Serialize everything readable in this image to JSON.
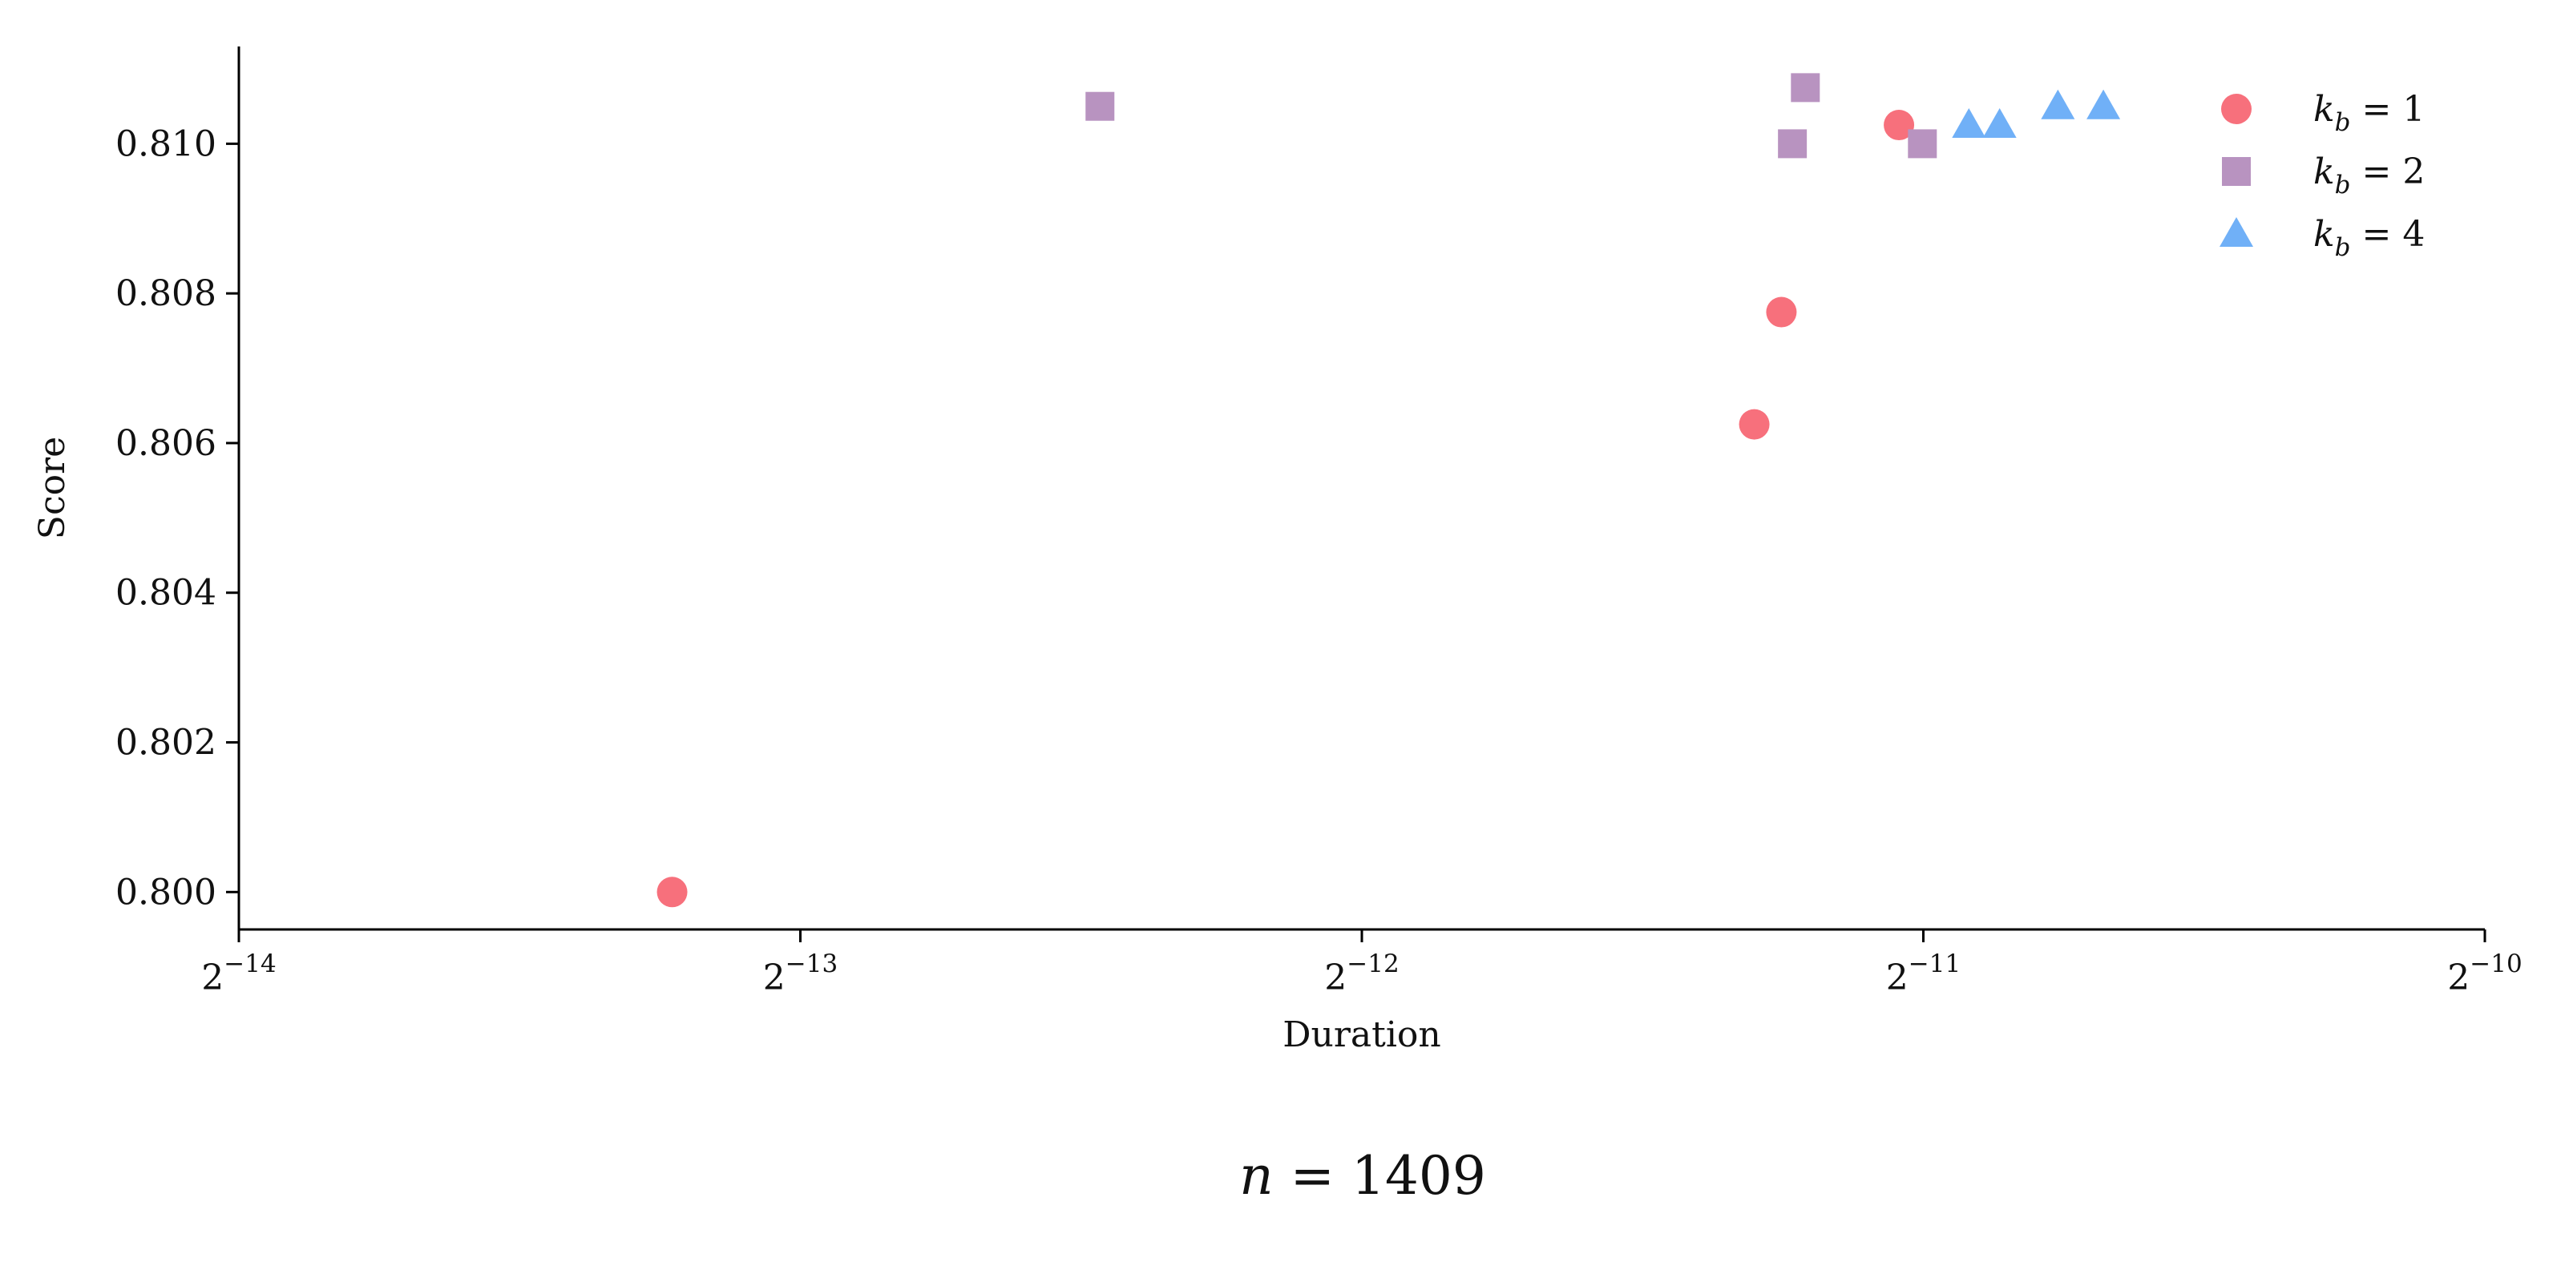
{
  "chart_data": {
    "type": "scatter",
    "title": "",
    "caption": "n = 1409",
    "xlabel": "Duration",
    "ylabel": "Score",
    "xscale": "log2",
    "xlim": [
      6.103515625e-05,
      0.0009765625
    ],
    "ylim": [
      0.7995,
      0.8113
    ],
    "x_ticks": [
      {
        "value": 6.103515625e-05,
        "base": "2",
        "exp": "−14"
      },
      {
        "value": 0.0001220703125,
        "base": "2",
        "exp": "−13"
      },
      {
        "value": 0.000244140625,
        "base": "2",
        "exp": "−12"
      },
      {
        "value": 0.00048828125,
        "base": "2",
        "exp": "−11"
      },
      {
        "value": 0.0009765625,
        "base": "2",
        "exp": "−10"
      }
    ],
    "y_ticks": [
      {
        "value": 0.8,
        "label": "0.800"
      },
      {
        "value": 0.802,
        "label": "0.802"
      },
      {
        "value": 0.804,
        "label": "0.804"
      },
      {
        "value": 0.806,
        "label": "0.806"
      },
      {
        "value": 0.808,
        "label": "0.808"
      },
      {
        "value": 0.81,
        "label": "0.810"
      }
    ],
    "grid": false,
    "legend_position": "top-right",
    "series": [
      {
        "name": "k_b = 1",
        "legend": {
          "var": "k",
          "sub": "b",
          "rest": " = 1"
        },
        "marker": "circle",
        "color": "#f7707c",
        "points": [
          {
            "x": 0.0001042,
            "y": 0.8
          },
          {
            "x": 0.0003963,
            "y": 0.80625
          },
          {
            "x": 0.0004098,
            "y": 0.80775
          },
          {
            "x": 0.0004738,
            "y": 0.81025
          }
        ]
      },
      {
        "name": "k_b = 2",
        "legend": {
          "var": "k",
          "sub": "b",
          "rest": " = 2"
        },
        "marker": "square",
        "color": "#b893c0",
        "points": [
          {
            "x": 0.0001767,
            "y": 0.8105
          },
          {
            "x": 0.0004154,
            "y": 0.81
          },
          {
            "x": 0.0004221,
            "y": 0.81075
          },
          {
            "x": 0.0004877,
            "y": 0.81
          }
        ]
      },
      {
        "name": "k_b = 4",
        "legend": {
          "var": "k",
          "sub": "b",
          "rest": " = 4"
        },
        "marker": "triangle",
        "color": "#70b0f7",
        "points": [
          {
            "x": 0.0005165,
            "y": 0.81025
          },
          {
            "x": 0.0005365,
            "y": 0.81025
          },
          {
            "x": 0.0005765,
            "y": 0.8105
          },
          {
            "x": 0.0006098,
            "y": 0.8105
          }
        ]
      }
    ]
  }
}
